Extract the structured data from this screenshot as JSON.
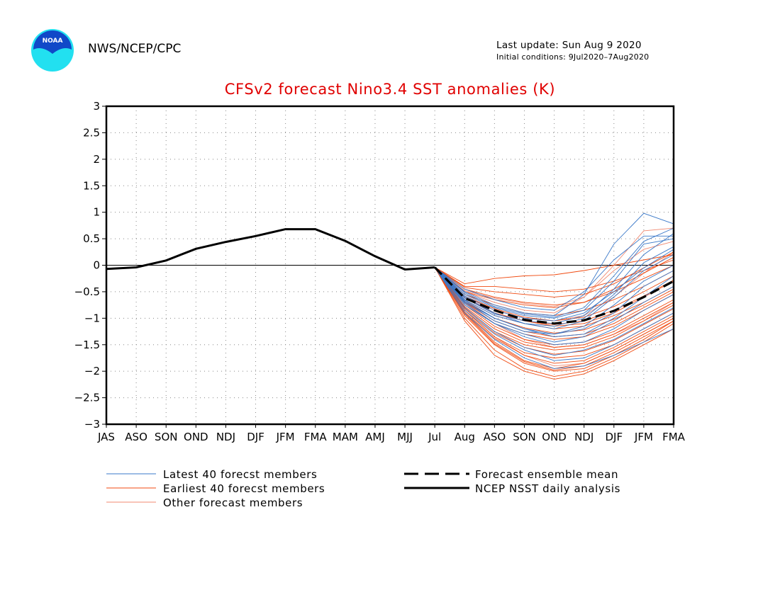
{
  "header": {
    "org": "NWS/NCEP/CPC",
    "last_update": "Last update: Sun Aug  9 2020",
    "initial_conditions": "Initial conditions:  9Jul2020–7Aug2020",
    "logo_text": "NOAA"
  },
  "colors": {
    "title": "#e00000",
    "latest_members": "#3a78c8",
    "earliest_members": "#f04a10",
    "other_members": "#f08870",
    "ensemble_mean": "#000000",
    "analysis": "#000000",
    "logo_outer": "#22e0f0",
    "logo_inner": "#1048c8"
  },
  "chart_data": {
    "type": "line",
    "title": "CFSv2 forecast Nino3.4 SST anomalies (K)",
    "xlabel": "",
    "ylabel": "",
    "categories": [
      "JAS",
      "ASO",
      "SON",
      "OND",
      "NDJ",
      "DJF",
      "JFM",
      "FMA",
      "MAM",
      "AMJ",
      "MJJ",
      "Jul",
      "Aug",
      "ASO",
      "SON",
      "OND",
      "NDJ",
      "DJF",
      "JFM",
      "FMA"
    ],
    "ylim": [
      -3,
      3
    ],
    "yticks": [
      3,
      2.5,
      2,
      1.5,
      1,
      0.5,
      0,
      -0.5,
      -1,
      -1.5,
      -2,
      -2.5,
      -3
    ],
    "ytick_labels": [
      "3",
      "2.5",
      "2",
      "1.5",
      "1",
      "0.5",
      "0",
      "−0.5",
      "−1",
      "−1.5",
      "−2",
      "−2.5",
      "−3"
    ],
    "grid": true,
    "zero_line": true,
    "legend_placement": "bottom",
    "analysis": {
      "name": "NCEP NSST daily analysis",
      "values": [
        -0.07,
        -0.04,
        0.09,
        0.31,
        0.44,
        0.55,
        0.68,
        0.68,
        0.46,
        0.17,
        -0.08,
        -0.04
      ]
    },
    "ensemble_mean": {
      "name": "Forecast ensemble mean",
      "start_index": 11,
      "values": [
        -0.04,
        -0.62,
        -0.85,
        -1.03,
        -1.1,
        -1.04,
        -0.86,
        -0.6,
        -0.3
      ]
    },
    "member_groups": [
      {
        "name": "Latest 40 forecst members",
        "start_index": 11,
        "members": [
          [
            -0.04,
            -0.45,
            -0.65,
            -0.8,
            -0.85,
            -0.5,
            0.1,
            0.55,
            0.55
          ],
          [
            -0.04,
            -0.5,
            -0.75,
            -0.9,
            -0.95,
            -0.55,
            0.4,
            0.98,
            0.78
          ],
          [
            -0.04,
            -0.55,
            -0.8,
            -0.95,
            -1.0,
            -0.85,
            -0.3,
            0.4,
            0.5
          ],
          [
            -0.04,
            -0.6,
            -0.9,
            -1.1,
            -1.2,
            -1.05,
            -0.6,
            -0.1,
            0.2
          ],
          [
            -0.04,
            -0.7,
            -1.0,
            -1.2,
            -1.3,
            -1.2,
            -0.9,
            -0.4,
            -0.1
          ],
          [
            -0.04,
            -0.75,
            -1.1,
            -1.3,
            -1.45,
            -1.35,
            -1.05,
            -0.7,
            -0.4
          ],
          [
            -0.04,
            -0.8,
            -1.25,
            -1.55,
            -1.7,
            -1.6,
            -1.4,
            -1.1,
            -0.8
          ],
          [
            -0.04,
            -0.9,
            -1.4,
            -1.75,
            -1.95,
            -1.9,
            -1.7,
            -1.45,
            -1.2
          ],
          [
            -0.04,
            -0.65,
            -0.95,
            -1.1,
            -1.15,
            -1.0,
            -0.55,
            0.05,
            0.35
          ],
          [
            -0.04,
            -0.58,
            -0.85,
            -1.0,
            -1.05,
            -0.9,
            -0.5,
            -0.05,
            0.3
          ],
          [
            -0.04,
            -0.68,
            -1.05,
            -1.25,
            -1.3,
            -1.15,
            -0.75,
            -0.3,
            0.0
          ],
          [
            -0.04,
            -0.72,
            -1.1,
            -1.35,
            -1.5,
            -1.45,
            -1.2,
            -0.85,
            -0.55
          ],
          [
            -0.04,
            -0.62,
            -0.92,
            -1.05,
            -1.1,
            -0.95,
            -0.45,
            0.2,
            0.6
          ],
          [
            -0.04,
            -0.85,
            -1.3,
            -1.6,
            -1.8,
            -1.75,
            -1.5,
            -1.2,
            -0.9
          ],
          [
            -0.04,
            -0.52,
            -0.78,
            -0.92,
            -0.98,
            -0.8,
            -0.2,
            0.45,
            0.7
          ],
          [
            -0.04,
            -0.66,
            -1.0,
            -1.2,
            -1.35,
            -1.3,
            -1.0,
            -0.6,
            -0.2
          ]
        ]
      },
      {
        "name": "Earliest 40 forecst members",
        "start_index": 11,
        "members": [
          [
            -0.04,
            -0.35,
            -0.25,
            -0.2,
            -0.18,
            -0.1,
            0.0,
            0.1,
            0.2
          ],
          [
            -0.04,
            -0.4,
            -0.4,
            -0.45,
            -0.5,
            -0.45,
            -0.3,
            -0.1,
            0.1
          ],
          [
            -0.04,
            -0.45,
            -0.6,
            -0.7,
            -0.75,
            -0.7,
            -0.5,
            -0.25,
            0.0
          ],
          [
            -0.04,
            -0.55,
            -0.75,
            -0.9,
            -0.95,
            -0.85,
            -0.65,
            -0.4,
            -0.1
          ],
          [
            -0.04,
            -0.6,
            -0.9,
            -1.05,
            -1.15,
            -1.1,
            -0.9,
            -0.6,
            -0.3
          ],
          [
            -0.04,
            -0.7,
            -1.05,
            -1.25,
            -1.35,
            -1.3,
            -1.1,
            -0.8,
            -0.5
          ],
          [
            -0.04,
            -0.8,
            -1.25,
            -1.5,
            -1.6,
            -1.55,
            -1.35,
            -1.05,
            -0.75
          ],
          [
            -0.04,
            -0.9,
            -1.45,
            -1.8,
            -1.95,
            -1.85,
            -1.6,
            -1.3,
            -1.0
          ],
          [
            -0.04,
            -1.0,
            -1.6,
            -1.95,
            -2.1,
            -2.0,
            -1.75,
            -1.45,
            -1.1
          ],
          [
            -0.04,
            -1.05,
            -1.7,
            -2.0,
            -2.15,
            -2.05,
            -1.8,
            -1.5,
            -1.2
          ],
          [
            -0.04,
            -0.5,
            -0.65,
            -0.75,
            -0.8,
            -0.7,
            -0.45,
            -0.15,
            0.15
          ],
          [
            -0.04,
            -0.65,
            -0.95,
            -1.1,
            -1.2,
            -1.15,
            -0.95,
            -0.7,
            -0.4
          ],
          [
            -0.04,
            -0.75,
            -1.15,
            -1.4,
            -1.5,
            -1.45,
            -1.25,
            -0.95,
            -0.65
          ],
          [
            -0.04,
            -0.85,
            -1.35,
            -1.65,
            -1.75,
            -1.7,
            -1.5,
            -1.2,
            -0.9
          ],
          [
            -0.04,
            -0.95,
            -1.5,
            -1.85,
            -2.0,
            -1.95,
            -1.7,
            -1.4,
            -1.05
          ],
          [
            -0.04,
            -0.58,
            -0.82,
            -0.98,
            -1.05,
            -0.98,
            -0.78,
            -0.5,
            -0.2
          ],
          [
            -0.04,
            -0.68,
            -1.0,
            -1.18,
            -1.28,
            -1.22,
            -1.02,
            -0.75,
            -0.45
          ],
          [
            -0.04,
            -0.78,
            -1.2,
            -1.45,
            -1.55,
            -1.5,
            -1.3,
            -1.0,
            -0.7
          ],
          [
            -0.04,
            -0.88,
            -1.38,
            -1.7,
            -1.85,
            -1.8,
            -1.55,
            -1.25,
            -0.95
          ],
          [
            -0.04,
            -0.42,
            -0.5,
            -0.55,
            -0.6,
            -0.55,
            -0.35,
            -0.05,
            0.25
          ],
          [
            -0.04,
            -0.72,
            -1.1,
            -1.3,
            -1.4,
            -1.35,
            -1.15,
            -0.85,
            -0.55
          ],
          [
            -0.04,
            -0.82,
            -1.28,
            -1.55,
            -1.68,
            -1.62,
            -1.42,
            -1.12,
            -0.82
          ],
          [
            -0.04,
            -0.62,
            -0.9,
            -1.05,
            -1.12,
            -1.05,
            -0.85,
            -0.58,
            -0.28
          ],
          [
            -0.04,
            -0.92,
            -1.48,
            -1.82,
            -1.98,
            -1.9,
            -1.65,
            -1.35,
            -1.05
          ]
        ]
      },
      {
        "name": "Other forecast members",
        "start_index": 11,
        "members": [
          [
            -0.04,
            -0.5,
            -0.7,
            -0.85,
            -0.9,
            -0.6,
            0.0,
            0.65,
            0.7
          ],
          [
            -0.04,
            -0.7,
            -1.1,
            -1.4,
            -1.55,
            -1.5,
            -1.3,
            -1.05,
            -0.7
          ],
          [
            -0.04,
            -0.6,
            -0.85,
            -1.0,
            -1.05,
            -0.95,
            -0.6,
            -0.15,
            0.25
          ],
          [
            -0.04,
            -0.85,
            -1.35,
            -1.7,
            -1.9,
            -1.85,
            -1.6,
            -1.3,
            -1.0
          ],
          [
            -0.04,
            -0.48,
            -0.62,
            -0.72,
            -0.78,
            -0.6,
            -0.1,
            0.3,
            0.45
          ]
        ]
      }
    ]
  },
  "legend": {
    "latest": "Latest 40 forecst members",
    "earliest": "Earliest 40 forecst members",
    "other": "Other forecast members",
    "mean": "Forecast ensemble mean",
    "analysis": "NCEP NSST daily analysis"
  }
}
